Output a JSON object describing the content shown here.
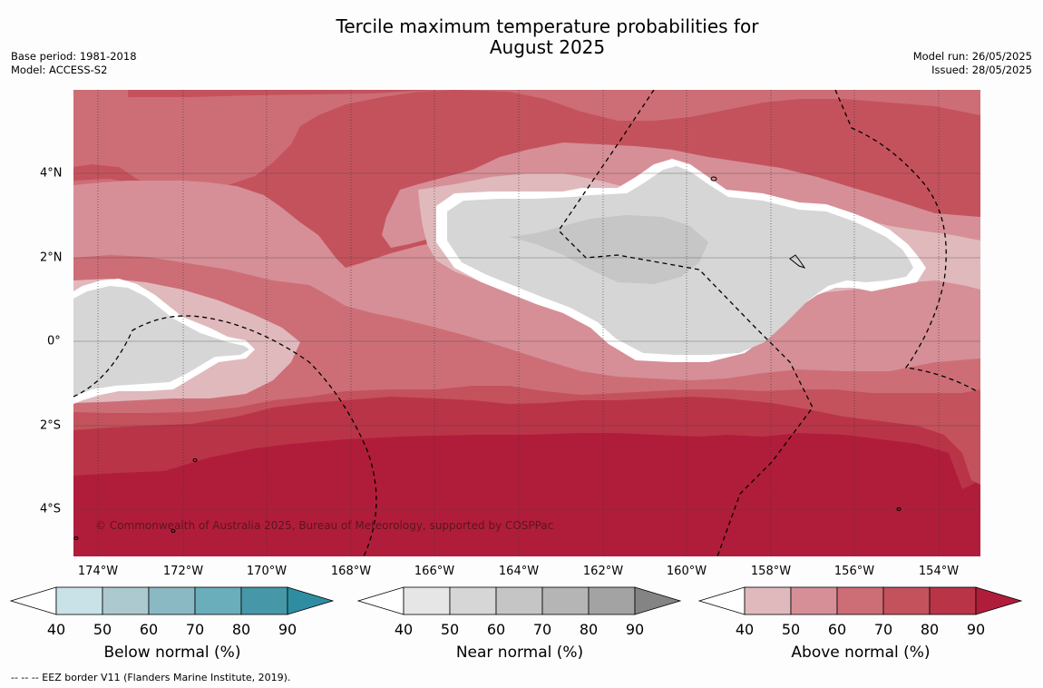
{
  "title": {
    "line1": "Tercile maximum temperature probabilities for",
    "line2": "August 2025"
  },
  "meta_left": {
    "base_period": "Base period: 1981-2018",
    "model": "Model: ACCESS-S2"
  },
  "meta_right": {
    "model_run": "Model run: 26/05/2025",
    "issued": "Issued: 28/05/2025"
  },
  "map": {
    "copyright": "© Commonwealth of Australia 2025, Bureau of Meteorology, supported by COSPPac",
    "lon_ticks": [
      "174°W",
      "172°W",
      "170°W",
      "168°W",
      "166°W",
      "164°W",
      "162°W",
      "160°W",
      "158°W",
      "156°W",
      "154°W"
    ],
    "lat_ticks": [
      "4°N",
      "2°N",
      "0°",
      "2°S",
      "4°S"
    ],
    "palette": {
      "above": [
        "#e0b9bd",
        "#d68f96",
        "#cd6e77",
        "#c4525d",
        "#ba3448",
        "#b01d3b"
      ],
      "near": [
        "#e6e6e6",
        "#d6d6d6",
        "#c5c5c5",
        "#b5b5b5",
        "#a3a3a3",
        "#848484"
      ],
      "below": [
        "#c9e2e8",
        "#abc9ce",
        "#8ab9c4",
        "#6aaebb",
        "#4698a8",
        "#2f8da1"
      ]
    }
  },
  "legends": [
    {
      "title": "Below normal (%)",
      "ticks": [
        "40",
        "50",
        "60",
        "70",
        "80",
        "90"
      ]
    },
    {
      "title": "Near normal (%)",
      "ticks": [
        "40",
        "50",
        "60",
        "70",
        "80",
        "90"
      ]
    },
    {
      "title": "Above normal (%)",
      "ticks": [
        "40",
        "50",
        "60",
        "70",
        "80",
        "90"
      ]
    }
  ],
  "footnote": "--  --  -- EEZ border V11 (Flanders Marine Institute, 2019)."
}
